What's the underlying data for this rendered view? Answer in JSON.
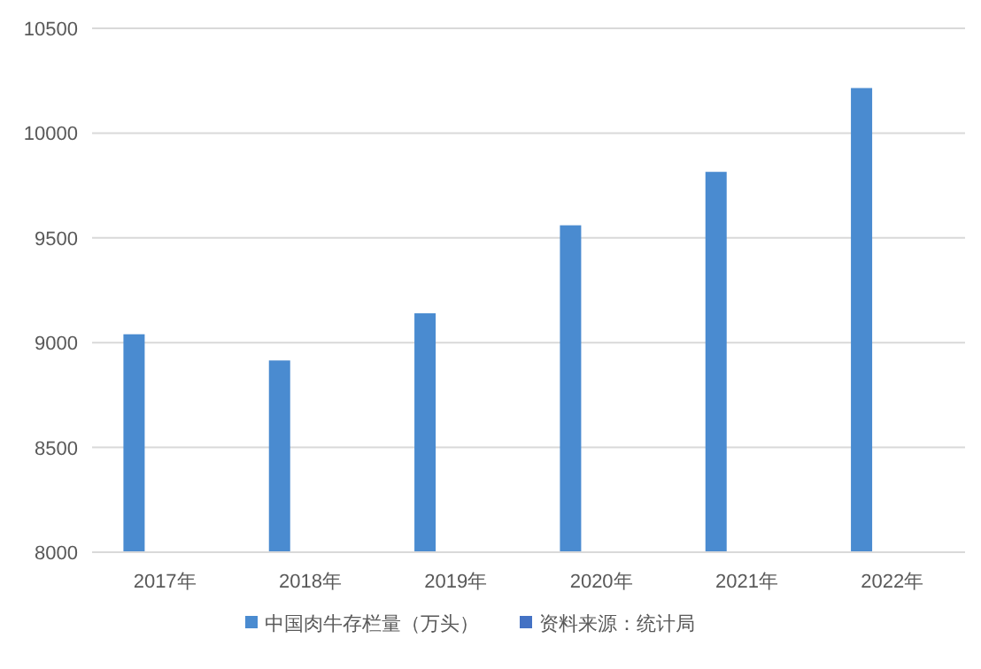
{
  "chart_data": {
    "type": "bar",
    "categories": [
      "2017年",
      "2018年",
      "2019年",
      "2020年",
      "2021年",
      "2022年"
    ],
    "series": [
      {
        "name": "中国肉牛存栏量（万头）",
        "color": "#4a8bd0",
        "values": [
          9040,
          8915,
          9140,
          9560,
          9815,
          10215
        ]
      },
      {
        "name": "资料来源：统计局",
        "color": "#4472c4",
        "values": [
          null,
          null,
          null,
          null,
          null,
          null
        ]
      }
    ],
    "ylim": [
      8000,
      10500
    ],
    "yticks": [
      8000,
      8500,
      9000,
      9500,
      10000,
      10500
    ],
    "grid": "y",
    "legend": "bottom"
  }
}
